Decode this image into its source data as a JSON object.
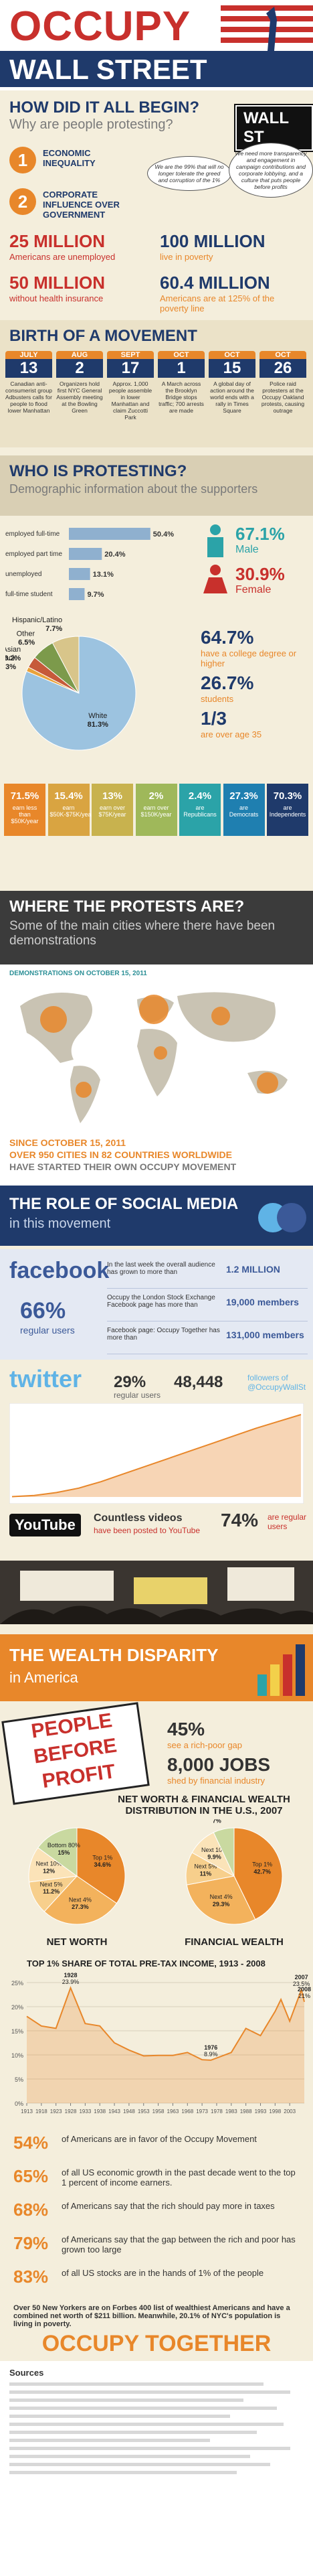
{
  "header": {
    "title_top": "OCCUPY",
    "title_bottom": "WALL STREET"
  },
  "begin": {
    "title": "HOW DID IT ALL BEGIN?",
    "subtitle": "Why are people protesting?",
    "street_sign": "WALL ST",
    "reasons": [
      {
        "num": "1",
        "label": "ECONOMIC INEQUALITY"
      },
      {
        "num": "2",
        "label": "CORPORATE INFLUENCE OVER GOVERNMENT"
      }
    ],
    "quotes": [
      "We are the 99% that will no longer tolerate the greed and corruption of the 1%",
      "We need more transparency and engagement in campaign contributions and corporate lobbying, and a culture that puts people before profits"
    ],
    "stats": [
      {
        "value": "25 MILLION",
        "label": "Americans are unemployed"
      },
      {
        "value": "100 MILLION",
        "label": "live in poverty"
      },
      {
        "value": "50 MILLION",
        "label": "without health insurance"
      },
      {
        "value": "60.4 MILLION",
        "label": "Americans are at 125% of the poverty line"
      }
    ]
  },
  "birth": {
    "title": "BIRTH OF A MOVEMENT",
    "events": [
      {
        "month": "JULY",
        "day": "13",
        "text": "Canadian anti-consumerist group Adbusters calls for people to flood lower Manhattan"
      },
      {
        "month": "AUG",
        "day": "2",
        "text": "Organizers hold first NYC General Assembly meeting at the Bowling Green"
      },
      {
        "month": "SEPT",
        "day": "17",
        "text": "Approx. 1,000 people assemble in lower Manhattan and claim Zuccotti Park"
      },
      {
        "month": "OCT",
        "day": "1",
        "text": "A March across the Brooklyn Bridge stops traffic; 700 arrests are made"
      },
      {
        "month": "OCT",
        "day": "15",
        "text": "A global day of action around the world ends with a rally in Times Square"
      },
      {
        "month": "OCT",
        "day": "26",
        "text": "Police raid protesters at the Occupy Oakland protests, causing outrage"
      }
    ]
  },
  "who": {
    "title": "WHO IS PROTESTING?",
    "subtitle": "Demographic information about the supporters",
    "employment": {
      "type": "bar",
      "categories": [
        "employed full-time",
        "employed part time",
        "unemployed",
        "full-time student"
      ],
      "values": [
        50.4,
        20.4,
        13.1,
        9.7
      ],
      "value_labels": [
        "50.4%",
        "20.4%",
        "13.1%",
        "9.7%"
      ],
      "xlim": [
        0,
        60
      ],
      "color": "#8fb0cf"
    },
    "gender": [
      {
        "value": "67.1%",
        "label": "Male"
      },
      {
        "value": "30.9%",
        "label": "Female"
      }
    ],
    "ethnicity": {
      "type": "pie",
      "categories": [
        "White",
        "Black",
        "Asian",
        "Other",
        "Hispanic/Latino"
      ],
      "values": [
        81.3,
        1.3,
        3.2,
        6.5,
        7.7
      ],
      "value_labels": [
        "81.3%",
        "1.3%",
        "3.2%",
        "6.5%",
        "7.7%"
      ],
      "colors": [
        "#9cc3e0",
        "#e9a23b",
        "#c65a3a",
        "#7c9a4b",
        "#d8c58a"
      ]
    },
    "facts": [
      {
        "value": "64.7%",
        "label": "have a college degree or higher"
      },
      {
        "value": "26.7%",
        "label": "students"
      },
      {
        "value": "1/3",
        "label": "are over age 35"
      }
    ],
    "income": [
      {
        "value": "71.5%",
        "label": "earn less than $50K/year"
      },
      {
        "value": "15.4%",
        "label": "earn $50K-$75K/year"
      },
      {
        "value": "13%",
        "label": "earn over $75K/year"
      },
      {
        "value": "2%",
        "label": "earn over $150K/year"
      },
      {
        "value": "2.4%",
        "label": "are Republicans"
      },
      {
        "value": "27.3%",
        "label": "are Democrats"
      },
      {
        "value": "70.3%",
        "label": "are Independents"
      }
    ]
  },
  "where": {
    "title": "WHERE THE PROTESTS ARE?",
    "subtitle": "Some of the main cities where there have been demonstrations",
    "map_caption": "DEMONSTRATIONS ON OCTOBER 15, 2011",
    "since": "SINCE OCTOBER 15, 2011",
    "headline": "OVER 950 CITIES IN 82 COUNTRIES WORLDWIDE",
    "tail": "HAVE STARTED THEIR OWN OCCUPY MOVEMENT"
  },
  "social": {
    "title": "THE ROLE OF SOCIAL MEDIA",
    "subtitle": "in this movement",
    "facebook": {
      "brand": "facebook",
      "share": "66%",
      "share_label": "regular users",
      "rows": [
        {
          "text": "In the last week the overall audience has grown to more than",
          "value": "1.2 MILLION"
        },
        {
          "text": "Occupy the London Stock Exchange Facebook page has more than",
          "value": "19,000 members"
        },
        {
          "text": "Facebook page: Occupy Together has more than",
          "value": "131,000 members"
        }
      ]
    },
    "twitter": {
      "brand": "twitter",
      "share": "29%",
      "share_label": "regular users",
      "followers": "48,448",
      "followers_label": "followers of @OccupyWallSt",
      "chart": {
        "type": "area",
        "values": [
          200,
          900,
          2600,
          5200,
          9000,
          13500,
          18000,
          22500,
          27000,
          31500,
          36000,
          40500,
          44500,
          48448
        ],
        "ylim": [
          0,
          52000
        ],
        "color": "#e8872a"
      }
    },
    "youtube": {
      "brand": "YouTube",
      "videos": "Countless videos",
      "videos_label": "have been posted to YouTube",
      "share": "74%",
      "share_label": "are regular users"
    }
  },
  "wealth": {
    "title": "THE WEALTH DISPARITY",
    "subtitle": "in America",
    "sign": [
      "PEOPLE",
      "BEFORE",
      "PROFIT"
    ],
    "stats": [
      {
        "value": "45%",
        "label": "see a rich-poor gap"
      },
      {
        "value": "8,000 JOBS",
        "label": "shed by financial industry"
      }
    ],
    "distribution_title": "NET WORTH & FINANCIAL WEALTH DISTRIBUTION IN THE U.S., 2007",
    "net_worth": {
      "type": "pie",
      "title": "NET WORTH",
      "categories": [
        "Top 1%",
        "Next 4%",
        "Next 5%",
        "Next 10%",
        "Bottom 80%"
      ],
      "values": [
        34.6,
        27.3,
        11.2,
        12.0,
        15.0
      ],
      "value_labels": [
        "34.6%",
        "27.3%",
        "11.2%",
        "12%",
        "15%"
      ],
      "colors": [
        "#e8872a",
        "#f3b25c",
        "#f7cf8c",
        "#fbe3b8",
        "#c9d9a0"
      ]
    },
    "financial": {
      "type": "pie",
      "title": "FINANCIAL WEALTH",
      "categories": [
        "Top 1%",
        "Next 4%",
        "Next 5%",
        "Next 10%",
        "Bottom 80%"
      ],
      "values": [
        42.7,
        29.3,
        11.0,
        9.9,
        7.0
      ],
      "value_labels": [
        "42.7%",
        "29.3%",
        "11%",
        "9.9%",
        "7%"
      ],
      "colors": [
        "#e8872a",
        "#f3b25c",
        "#f7cf8c",
        "#fbe3b8",
        "#c9d9a0"
      ]
    },
    "top1": {
      "type": "line",
      "title": "TOP 1% SHARE OF TOTAL PRE-TAX INCOME, 1913 - 2008",
      "x": [
        1913,
        1918,
        1923,
        1928,
        1933,
        1938,
        1943,
        1948,
        1953,
        1958,
        1963,
        1968,
        1973,
        1976,
        1983,
        1988,
        1993,
        1998,
        2000,
        2003,
        2007,
        2008
      ],
      "values": [
        18.0,
        16.0,
        15.5,
        23.9,
        16.5,
        16.0,
        12.5,
        11.0,
        9.8,
        9.9,
        9.9,
        10.5,
        9.0,
        8.9,
        10.5,
        15.5,
        14.0,
        19.0,
        21.5,
        17.0,
        23.5,
        21.0
      ],
      "color": "#e8872a",
      "xlim": [
        1913,
        2008
      ],
      "ylim": [
        0,
        25
      ],
      "xticks": [
        1913,
        1918,
        1923,
        1928,
        1933,
        1938,
        1943,
        1948,
        1953,
        1958,
        1963,
        1968,
        1973,
        1978,
        1983,
        1988,
        1993,
        1998,
        2003
      ],
      "yticks": [
        {
          "value": 0,
          "label": "0%"
        },
        {
          "value": 5,
          "label": "5%"
        },
        {
          "value": 10,
          "label": "10%"
        },
        {
          "value": 15,
          "label": "15%"
        },
        {
          "value": 20,
          "label": "20%"
        },
        {
          "value": 25,
          "label": "25%"
        }
      ],
      "annotations": [
        {
          "year": "1928",
          "share": "23.9%"
        },
        {
          "year": "1976",
          "share": "8.9%"
        },
        {
          "year": "2007",
          "share": "23.5%"
        },
        {
          "year": "2008",
          "share": "21%"
        }
      ]
    },
    "facts": [
      {
        "value": "54%",
        "text": "of Americans are in favor of the Occupy Movement"
      },
      {
        "value": "65%",
        "text": "of all US economic growth in the past decade went to the top 1 percent of income earners."
      },
      {
        "value": "68%",
        "text": "of Americans say that the rich should pay more in taxes"
      },
      {
        "value": "79%",
        "text": "of Americans say that the gap between the rich and poor has grown too large"
      },
      {
        "value": "83%",
        "text": "of all US stocks are in the hands of 1% of the people"
      }
    ],
    "note": "Over 50 New Yorkers are on Forbes 400 list of wealthiest Americans and have a combined net worth of $211 billion. Meanwhile, 20.1% of NYC's population is living in poverty."
  },
  "footer": {
    "slogan": "OCCUPY TOGETHER",
    "sources_title": "Sources"
  }
}
